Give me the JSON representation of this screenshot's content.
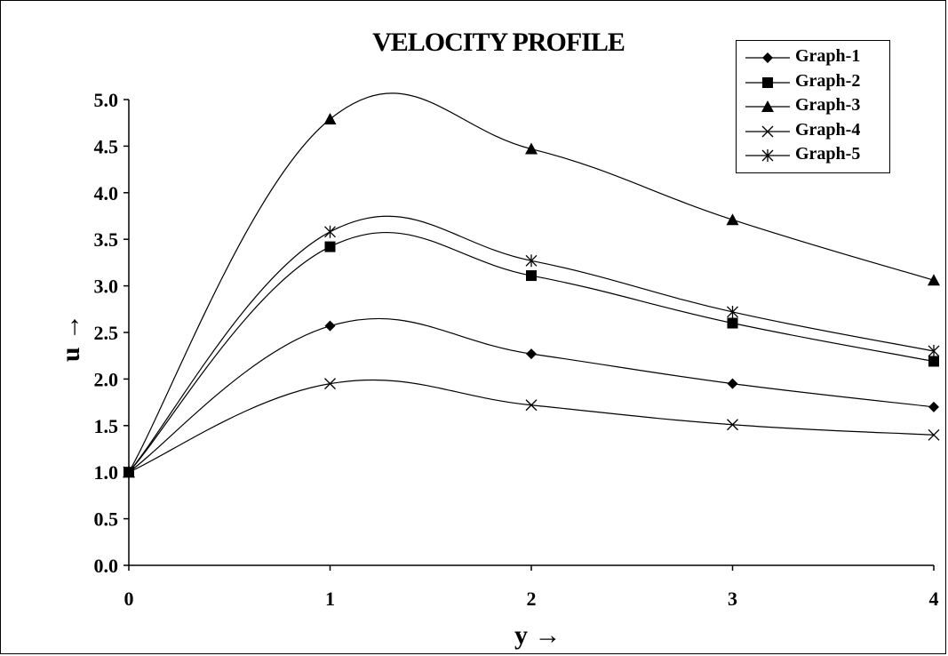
{
  "chart_data": {
    "type": "line",
    "title": "VELOCITY PROFILE",
    "xlabel": "y →",
    "ylabel": "u →",
    "x": [
      0,
      1,
      2,
      3,
      4
    ],
    "xlim": [
      0,
      4
    ],
    "ylim": [
      0,
      5
    ],
    "x_ticks": [
      "0",
      "1",
      "2",
      "3",
      "4"
    ],
    "y_ticks": [
      "0.0",
      "0.5",
      "1.0",
      "1.5",
      "2.0",
      "2.5",
      "3.0",
      "3.5",
      "4.0",
      "4.5",
      "5.0"
    ],
    "grid": false,
    "legend_position": "top-right",
    "series": [
      {
        "name": "Graph-1",
        "marker": "diamond",
        "values": [
          1.0,
          2.57,
          2.27,
          1.95,
          1.7
        ]
      },
      {
        "name": "Graph-2",
        "marker": "square",
        "values": [
          1.0,
          3.42,
          3.11,
          2.6,
          2.19
        ]
      },
      {
        "name": "Graph-3",
        "marker": "triangle",
        "values": [
          1.0,
          4.79,
          4.47,
          3.71,
          3.06
        ]
      },
      {
        "name": "Graph-4",
        "marker": "x",
        "values": [
          1.0,
          1.95,
          1.72,
          1.51,
          1.4
        ]
      },
      {
        "name": "Graph-5",
        "marker": "star",
        "values": [
          1.0,
          3.58,
          3.27,
          2.72,
          2.3
        ]
      }
    ]
  }
}
